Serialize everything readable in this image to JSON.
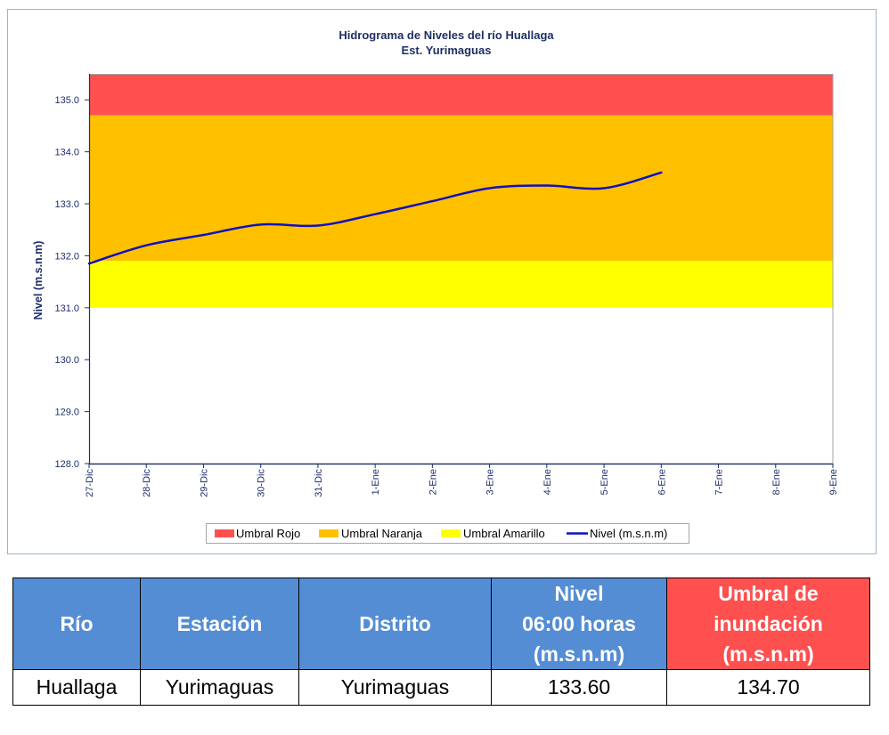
{
  "chart_data": {
    "type": "line",
    "title": "Hidrograma de Niveles del río Huallaga",
    "subtitle": "Est. Yurimaguas",
    "ylabel": "Nivel (m.s.n.m)",
    "categories": [
      "27-Dic",
      "28-Dic",
      "29-Dic",
      "30-Dic",
      "31-Dic",
      "1-Ene",
      "2-Ene",
      "3-Ene",
      "4-Ene",
      "5-Ene",
      "6-Ene",
      "7-Ene",
      "8-Ene",
      "9-Ene"
    ],
    "ylim": [
      128.0,
      135.5
    ],
    "yticks": [
      "128.0",
      "129.0",
      "130.0",
      "131.0",
      "132.0",
      "133.0",
      "134.0",
      "135.0"
    ],
    "bands": [
      {
        "name": "Umbral Rojo",
        "from": 134.7,
        "to": 135.5,
        "color": "#FF5050"
      },
      {
        "name": "Umbral Naranja",
        "from": 131.9,
        "to": 134.7,
        "color": "#FFC000"
      },
      {
        "name": "Umbral Amarillo",
        "from": 131.0,
        "to": 131.9,
        "color": "#FFFF00"
      }
    ],
    "series": [
      {
        "name": "Nivel (m.s.n.m)",
        "color": "#1010C0",
        "values": [
          131.85,
          132.2,
          132.4,
          132.6,
          132.58,
          132.8,
          133.05,
          133.3,
          133.35,
          133.3,
          133.6,
          null,
          null,
          null
        ]
      }
    ],
    "grid": false,
    "legend": "bottom",
    "colors": {
      "title": "#1F3066",
      "axis": "#1F2F6B",
      "frame": "#9DB3CC",
      "plot_border": "#A6A6A6"
    }
  },
  "table": {
    "headers": [
      "Río",
      "Estación",
      "Distrito",
      "Nivel\n06:00 horas\n(m.s.n.m)",
      "Umbral de\ninundación\n(m.s.n.m)"
    ],
    "header_colors": [
      "#548DD4",
      "#548DD4",
      "#548DD4",
      "#548DD4",
      "#FF5050"
    ],
    "rows": [
      [
        "Huallaga",
        "Yurimaguas",
        "Yurimaguas",
        "133.60",
        "134.70"
      ]
    ]
  }
}
